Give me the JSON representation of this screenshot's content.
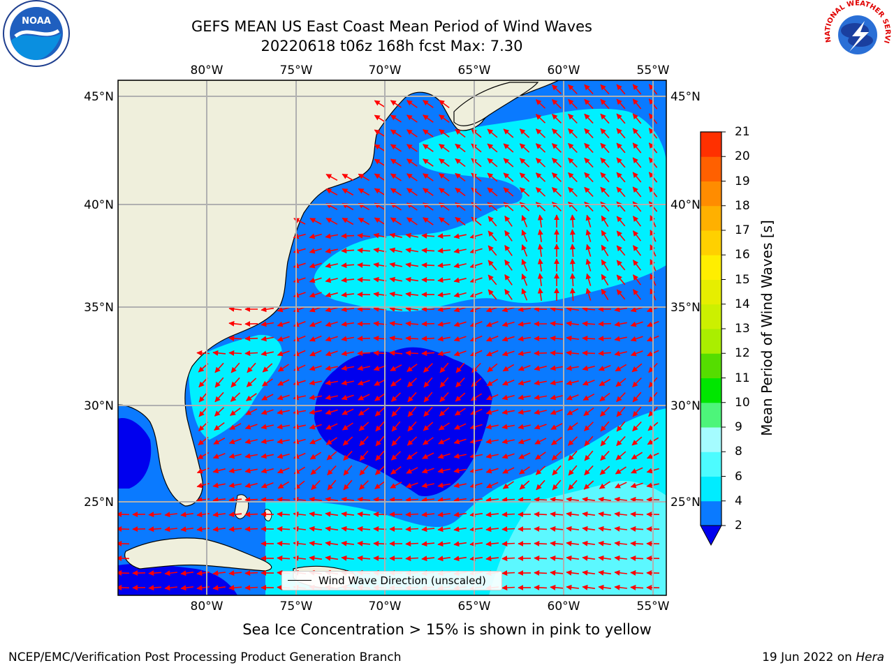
{
  "title_line1": "GEFS MEAN US East Coast Mean Period of Wind Waves",
  "title_line2": "20220618 t06z 168h fcst   Max: 7.30",
  "subtitle": "Sea Ice Concentration > 15% is shown in pink to yellow",
  "footer_left": "NCEP/EMC/Verification Post Processing Product Generation Branch",
  "footer_right_text": "19 Jun 2022 on",
  "footer_right_host": "Hera",
  "legend_label": "Wind Wave Direction (unscaled)",
  "colorbar": {
    "label": "Mean Period of Wind Waves [s]",
    "ticks": [
      "2",
      "4",
      "6",
      "8",
      "9",
      "10",
      "11",
      "12",
      "13",
      "14",
      "15",
      "16",
      "17",
      "18",
      "19",
      "20",
      "21"
    ],
    "colors": [
      "#0a7aff",
      "#00ecff",
      "#4dfcff",
      "#a5fcff",
      "#4df57a",
      "#00e600",
      "#55dd00",
      "#aaee00",
      "#ccf000",
      "#e6ee00",
      "#ffee00",
      "#ffd000",
      "#ffb000",
      "#ff8c00",
      "#ff6000",
      "#ff3000",
      "#ff0000"
    ],
    "extend_color": "#0000ee"
  },
  "x_ticks_top": [
    "80°W",
    "75°W",
    "70°W",
    "65°W",
    "60°W",
    "55°W"
  ],
  "x_ticks_bottom": [
    "80°W",
    "75°W",
    "70°W",
    "65°W",
    "60°W",
    "55°W"
  ],
  "y_ticks_left": [
    "45°N",
    "40°N",
    "35°N",
    "30°N",
    "25°N"
  ],
  "y_ticks_right": [
    "45°N",
    "40°N",
    "35°N",
    "30°N",
    "25°N"
  ],
  "logos": {
    "noaa_text": "NOAA",
    "nws_text": "NATIONAL WEATHER SERVICE"
  },
  "map_colors": {
    "land": "#efefdc",
    "sea_dark": "#0000ee",
    "sea_mid": "#0a7aff",
    "sea_light": "#00f0ff",
    "sea_pale": "#5cf8ff",
    "arrow": "#ff0000",
    "grid": "#b0b0b0"
  }
}
